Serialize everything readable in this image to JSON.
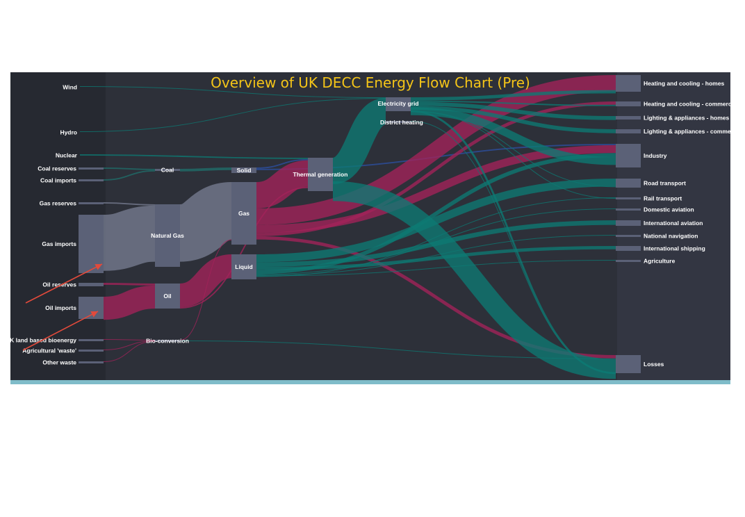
{
  "chart_data": {
    "type": "sankey",
    "title": "Overview of UK DECC Energy Flow Chart (Pre)",
    "colors": {
      "title": "#f5c518",
      "background": "#2d3039",
      "node": "#5b6177",
      "gas_flow": "#767c91",
      "oil_flow": "#a3235a",
      "elec_flow": "#0d7a73",
      "coal_flow": "#1f6e6a",
      "industry_flow": "#2b4fa1",
      "arrow": "#e24a3b",
      "accent_bar": "#7fbcc9"
    },
    "nodes": [
      {
        "id": "wind",
        "label": "Wind"
      },
      {
        "id": "hydro",
        "label": "Hydro"
      },
      {
        "id": "nuclear",
        "label": "Nuclear"
      },
      {
        "id": "coal_reserves",
        "label": "Coal reserves"
      },
      {
        "id": "coal_imports",
        "label": "Coal imports"
      },
      {
        "id": "gas_reserves",
        "label": "Gas reserves"
      },
      {
        "id": "gas_imports",
        "label": "Gas imports"
      },
      {
        "id": "oil_reserves",
        "label": "Oil reserves"
      },
      {
        "id": "oil_imports",
        "label": "Oil imports"
      },
      {
        "id": "uk_bioenergy",
        "label": "UK land based bioenergy"
      },
      {
        "id": "agri_waste",
        "label": "Agricultural 'waste'"
      },
      {
        "id": "other_waste",
        "label": "Other waste"
      },
      {
        "id": "coal",
        "label": "Coal"
      },
      {
        "id": "natural_gas",
        "label": "Natural Gas"
      },
      {
        "id": "oil",
        "label": "Oil"
      },
      {
        "id": "bio_conversion",
        "label": "Bio-conversion"
      },
      {
        "id": "solid",
        "label": "Solid"
      },
      {
        "id": "gas",
        "label": "Gas"
      },
      {
        "id": "liquid",
        "label": "Liquid"
      },
      {
        "id": "thermal",
        "label": "Thermal generation"
      },
      {
        "id": "grid",
        "label": "Electricity grid"
      },
      {
        "id": "district",
        "label": "District heating"
      },
      {
        "id": "heat_homes",
        "label": "Heating and cooling - homes"
      },
      {
        "id": "heat_comm",
        "label": "Heating and cooling - commercial"
      },
      {
        "id": "light_homes",
        "label": "Lighting & appliances - homes"
      },
      {
        "id": "light_comm",
        "label": "Lighting & appliances - commercial"
      },
      {
        "id": "industry",
        "label": "Industry"
      },
      {
        "id": "road",
        "label": "Road transport"
      },
      {
        "id": "rail",
        "label": "Rail transport"
      },
      {
        "id": "dom_aviation",
        "label": "Domestic aviation"
      },
      {
        "id": "int_aviation",
        "label": "International aviation"
      },
      {
        "id": "nat_navigation",
        "label": "National navigation"
      },
      {
        "id": "int_shipping",
        "label": "International shipping"
      },
      {
        "id": "agriculture",
        "label": "Agriculture"
      },
      {
        "id": "losses",
        "label": "Losses"
      }
    ],
    "links": [
      {
        "source": "wind",
        "target": "grid",
        "value": 1,
        "kind": "elec"
      },
      {
        "source": "hydro",
        "target": "grid",
        "value": 0.5,
        "kind": "elec"
      },
      {
        "source": "nuclear",
        "target": "thermal",
        "value": 2,
        "kind": "elec"
      },
      {
        "source": "coal_reserves",
        "target": "coal",
        "value": 2,
        "kind": "coal"
      },
      {
        "source": "coal_imports",
        "target": "coal",
        "value": 2,
        "kind": "coal"
      },
      {
        "source": "coal",
        "target": "solid",
        "value": 4,
        "kind": "coal"
      },
      {
        "source": "solid",
        "target": "thermal",
        "value": 2,
        "kind": "industry"
      },
      {
        "source": "solid",
        "target": "industry",
        "value": 2,
        "kind": "industry"
      },
      {
        "source": "gas_reserves",
        "target": "natural_gas",
        "value": 2,
        "kind": "gas"
      },
      {
        "source": "gas_imports",
        "target": "natural_gas",
        "value": 85,
        "kind": "gas"
      },
      {
        "source": "natural_gas",
        "target": "gas",
        "value": 87,
        "kind": "gas"
      },
      {
        "source": "gas",
        "target": "thermal",
        "value": 40,
        "kind": "oil"
      },
      {
        "source": "gas",
        "target": "heat_homes",
        "value": 25,
        "kind": "oil"
      },
      {
        "source": "gas",
        "target": "industry",
        "value": 12,
        "kind": "oil"
      },
      {
        "source": "gas",
        "target": "heat_comm",
        "value": 5,
        "kind": "oil"
      },
      {
        "source": "gas",
        "target": "losses",
        "value": 5,
        "kind": "oil"
      },
      {
        "source": "oil_reserves",
        "target": "oil",
        "value": 3,
        "kind": "oil"
      },
      {
        "source": "oil_imports",
        "target": "oil",
        "value": 35,
        "kind": "oil"
      },
      {
        "source": "oil",
        "target": "liquid",
        "value": 36,
        "kind": "oil"
      },
      {
        "source": "oil",
        "target": "thermal",
        "value": 2,
        "kind": "oil"
      },
      {
        "source": "uk_bioenergy",
        "target": "bio_conversion",
        "value": 1,
        "kind": "oil"
      },
      {
        "source": "agri_waste",
        "target": "bio_conversion",
        "value": 1,
        "kind": "oil"
      },
      {
        "source": "other_waste",
        "target": "bio_conversion",
        "value": 1,
        "kind": "oil"
      },
      {
        "source": "bio_conversion",
        "target": "gas",
        "value": 1,
        "kind": "oil"
      },
      {
        "source": "bio_conversion",
        "target": "losses",
        "value": 1,
        "kind": "elec"
      },
      {
        "source": "liquid",
        "target": "road",
        "value": 12,
        "kind": "elec"
      },
      {
        "source": "liquid",
        "target": "int_aviation",
        "value": 7,
        "kind": "elec"
      },
      {
        "source": "liquid",
        "target": "int_shipping",
        "value": 5,
        "kind": "elec"
      },
      {
        "source": "liquid",
        "target": "industry",
        "value": 6,
        "kind": "elec"
      },
      {
        "source": "liquid",
        "target": "dom_aviation",
        "value": 1,
        "kind": "elec"
      },
      {
        "source": "liquid",
        "target": "nat_navigation",
        "value": 1,
        "kind": "elec"
      },
      {
        "source": "liquid",
        "target": "agriculture",
        "value": 1,
        "kind": "elec"
      },
      {
        "source": "liquid",
        "target": "rail",
        "value": 1,
        "kind": "elec"
      },
      {
        "source": "thermal",
        "target": "grid",
        "value": 40,
        "kind": "elec"
      },
      {
        "source": "thermal",
        "target": "losses",
        "value": 30,
        "kind": "elec"
      },
      {
        "source": "grid",
        "target": "heat_homes",
        "value": 5,
        "kind": "elec"
      },
      {
        "source": "grid",
        "target": "heat_comm",
        "value": 2,
        "kind": "elec"
      },
      {
        "source": "grid",
        "target": "light_homes",
        "value": 6,
        "kind": "elec"
      },
      {
        "source": "grid",
        "target": "light_comm",
        "value": 6,
        "kind": "elec"
      },
      {
        "source": "grid",
        "target": "industry",
        "value": 12,
        "kind": "elec"
      },
      {
        "source": "grid",
        "target": "road",
        "value": 1,
        "kind": "elec"
      },
      {
        "source": "grid",
        "target": "rail",
        "value": 1,
        "kind": "elec"
      },
      {
        "source": "grid",
        "target": "losses",
        "value": 3,
        "kind": "elec"
      },
      {
        "source": "district",
        "target": "losses",
        "value": 0.5,
        "kind": "elec"
      }
    ]
  }
}
